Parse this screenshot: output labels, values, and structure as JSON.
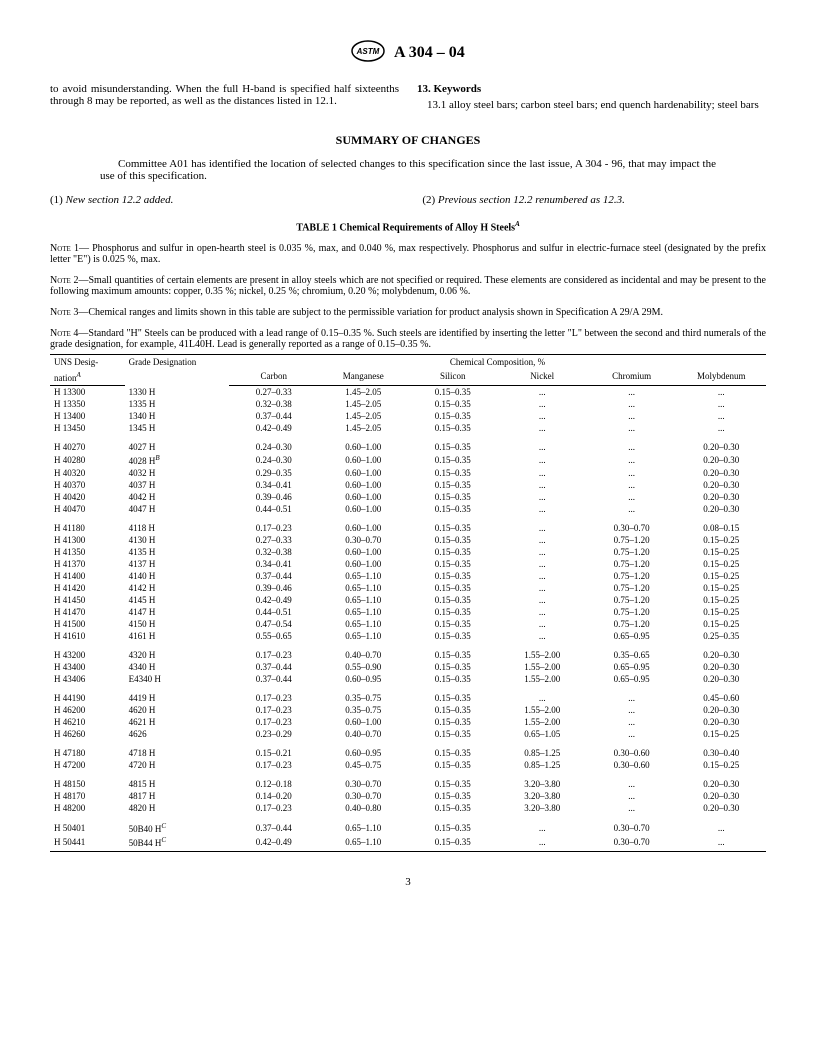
{
  "header": {
    "spec": "A 304 – 04"
  },
  "body": {
    "para1": "to avoid misunderstanding. When the full H-band is specified half sixteenths through 8 may be reported, as well as the distances listed in 12.1.",
    "sec13_head": "13. Keywords",
    "sec13_body": "13.1 alloy steel bars; carbon steel bars; end quench hardenability; steel bars"
  },
  "summary": {
    "title": "SUMMARY OF CHANGES",
    "committee": "Committee A01 has identified the location of selected changes to this specification since the last issue, A 304 - 96, that may impact the use of this specification.",
    "change1_num": "(1)",
    "change1_text": " New section 12.2 added.",
    "change2_num": "(2)",
    "change2_text": " Previous section 12.2 renumbered as 12.3."
  },
  "table": {
    "title": "TABLE 1   Chemical Requirements of Alloy H Steels",
    "title_sup": "A",
    "note1": " 1— Phosphorus and sulfur in open-hearth steel is 0.035 %, max, and 0.040 %, max respectively. Phosphorus and sulfur in electric-furnace steel (designated by the prefix letter \"E\") is 0.025 %, max.",
    "note2": " 2—Small quantities of certain elements are present in alloy steels which are not specified or required. These elements are considered as incidental and may be present to the following maximum amounts: copper, 0.35 %; nickel, 0.25 %; chromium, 0.20 %; molybdenum, 0.06 %.",
    "note3": " 3—Chemical ranges and limits shown in this table are subject to the permissible variation for product analysis shown in Specification A 29/A 29M.",
    "note4": " 4—Standard \"H\" Steels can be produced with a lead range of 0.15–0.35 %. Such steels are identified by inserting the letter \"L\" between the second and third numerals of the grade designation, for example, 41L40H. Lead is generally reported as a range of 0.15–0.35 %.",
    "note_lead": "Note",
    "head": {
      "uns": "UNS Desig-",
      "nation": "nation",
      "nation_sup": "A",
      "grade": "Grade Designation",
      "comp": "Chemical Composition, %",
      "cols": [
        "Carbon",
        "Manganese",
        "Silicon",
        "Nickel",
        "Chromium",
        "Molybdenum"
      ]
    },
    "groups": [
      [
        [
          "H 13300",
          "1330 H",
          "0.27–0.33",
          "1.45–2.05",
          "0.15–0.35",
          "...",
          "...",
          "..."
        ],
        [
          "H 13350",
          "1335 H",
          "0.32–0.38",
          "1.45–2.05",
          "0.15–0.35",
          "...",
          "...",
          "..."
        ],
        [
          "H 13400",
          "1340 H",
          "0.37–0.44",
          "1.45–2.05",
          "0.15–0.35",
          "...",
          "...",
          "..."
        ],
        [
          "H 13450",
          "1345 H",
          "0.42–0.49",
          "1.45–2.05",
          "0.15–0.35",
          "...",
          "...",
          "..."
        ]
      ],
      [
        [
          "H 40270",
          "4027 H",
          "0.24–0.30",
          "0.60–1.00",
          "0.15–0.35",
          "...",
          "...",
          "0.20–0.30"
        ],
        [
          "H 40280",
          "4028 H|B",
          "0.24–0.30",
          "0.60–1.00",
          "0.15–0.35",
          "...",
          "...",
          "0.20–0.30"
        ],
        [
          "H 40320",
          "4032 H",
          "0.29–0.35",
          "0.60–1.00",
          "0.15–0.35",
          "...",
          "...",
          "0.20–0.30"
        ],
        [
          "H 40370",
          "4037 H",
          "0.34–0.41",
          "0.60–1.00",
          "0.15–0.35",
          "...",
          "...",
          "0.20–0.30"
        ],
        [
          "H 40420",
          "4042 H",
          "0.39–0.46",
          "0.60–1.00",
          "0.15–0.35",
          "...",
          "...",
          "0.20–0.30"
        ],
        [
          "H 40470",
          "4047 H",
          "0.44–0.51",
          "0.60–1.00",
          "0.15–0.35",
          "...",
          "...",
          "0.20–0.30"
        ]
      ],
      [
        [
          "H 41180",
          "4118 H",
          "0.17–0.23",
          "0.60–1.00",
          "0.15–0.35",
          "...",
          "0.30–0.70",
          "0.08–0.15"
        ],
        [
          "H 41300",
          "4130 H",
          "0.27–0.33",
          "0.30–0.70",
          "0.15–0.35",
          "...",
          "0.75–1.20",
          "0.15–0.25"
        ],
        [
          "H 41350",
          "4135 H",
          "0.32–0.38",
          "0.60–1.00",
          "0.15–0.35",
          "...",
          "0.75–1.20",
          "0.15–0.25"
        ],
        [
          "H 41370",
          "4137 H",
          "0.34–0.41",
          "0.60–1.00",
          "0.15–0.35",
          "...",
          "0.75–1.20",
          "0.15–0.25"
        ],
        [
          "H 41400",
          "4140 H",
          "0.37–0.44",
          "0.65–1.10",
          "0.15–0.35",
          "...",
          "0.75–1.20",
          "0.15–0.25"
        ],
        [
          "H 41420",
          "4142 H",
          "0.39–0.46",
          "0.65–1.10",
          "0.15–0.35",
          "...",
          "0.75–1.20",
          "0.15–0.25"
        ],
        [
          "H 41450",
          "4145 H",
          "0.42–0.49",
          "0.65–1.10",
          "0.15–0.35",
          "...",
          "0.75–1.20",
          "0.15–0.25"
        ],
        [
          "H 41470",
          "4147 H",
          "0.44–0.51",
          "0.65–1.10",
          "0.15–0.35",
          "...",
          "0.75–1.20",
          "0.15–0.25"
        ],
        [
          "H 41500",
          "4150 H",
          "0.47–0.54",
          "0.65–1.10",
          "0.15–0.35",
          "...",
          "0.75–1.20",
          "0.15–0.25"
        ],
        [
          "H 41610",
          "4161 H",
          "0.55–0.65",
          "0.65–1.10",
          "0.15–0.35",
          "...",
          "0.65–0.95",
          "0.25–0.35"
        ]
      ],
      [
        [
          "H 43200",
          "4320 H",
          "0.17–0.23",
          "0.40–0.70",
          "0.15–0.35",
          "1.55–2.00",
          "0.35–0.65",
          "0.20–0.30"
        ],
        [
          "H 43400",
          "4340 H",
          "0.37–0.44",
          "0.55–0.90",
          "0.15–0.35",
          "1.55–2.00",
          "0.65–0.95",
          "0.20–0.30"
        ],
        [
          "H 43406",
          "E4340 H",
          "0.37–0.44",
          "0.60–0.95",
          "0.15–0.35",
          "1.55–2.00",
          "0.65–0.95",
          "0.20–0.30"
        ]
      ],
      [
        [
          "H 44190",
          "4419 H",
          "0.17–0.23",
          "0.35–0.75",
          "0.15–0.35",
          "...",
          "...",
          "0.45–0.60"
        ],
        [
          "H 46200",
          "4620 H",
          "0.17–0.23",
          "0.35–0.75",
          "0.15–0.35",
          "1.55–2.00",
          "...",
          "0.20–0.30"
        ],
        [
          "H 46210",
          "4621 H",
          "0.17–0.23",
          "0.60–1.00",
          "0.15–0.35",
          "1.55–2.00",
          "...",
          "0.20–0.30"
        ],
        [
          "H 46260",
          "4626",
          "0.23–0.29",
          "0.40–0.70",
          "0.15–0.35",
          "0.65–1.05",
          "...",
          "0.15–0.25"
        ]
      ],
      [
        [
          "H 47180",
          "4718 H",
          "0.15–0.21",
          "0.60–0.95",
          "0.15–0.35",
          "0.85–1.25",
          "0.30–0.60",
          "0.30–0.40"
        ],
        [
          "H 47200",
          "4720 H",
          "0.17–0.23",
          "0.45–0.75",
          "0.15–0.35",
          "0.85–1.25",
          "0.30–0.60",
          "0.15–0.25"
        ]
      ],
      [
        [
          "H 48150",
          "4815 H",
          "0.12–0.18",
          "0.30–0.70",
          "0.15–0.35",
          "3.20–3.80",
          "...",
          "0.20–0.30"
        ],
        [
          "H 48170",
          "4817 H",
          "0.14–0.20",
          "0.30–0.70",
          "0.15–0.35",
          "3.20–3.80",
          "...",
          "0.20–0.30"
        ],
        [
          "H 48200",
          "4820 H",
          "0.17–0.23",
          "0.40–0.80",
          "0.15–0.35",
          "3.20–3.80",
          "...",
          "0.20–0.30"
        ]
      ],
      [
        [
          "H 50401",
          "50B40 H|C",
          "0.37–0.44",
          "0.65–1.10",
          "0.15–0.35",
          "...",
          "0.30–0.70",
          "..."
        ],
        [
          "H 50441",
          "50B44 H|C",
          "0.42–0.49",
          "0.65–1.10",
          "0.15–0.35",
          "...",
          "0.30–0.70",
          "..."
        ]
      ]
    ]
  },
  "pagenum": "3"
}
